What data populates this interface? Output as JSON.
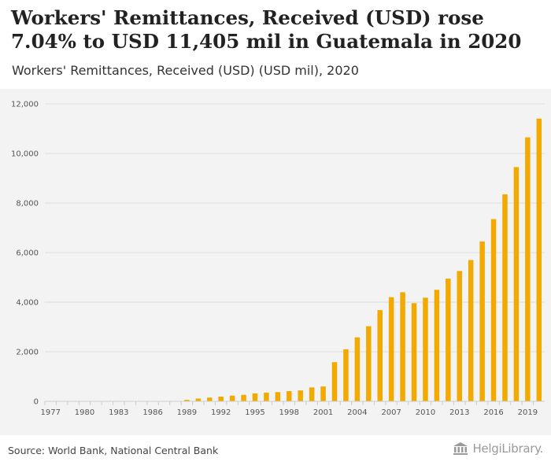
{
  "header": {
    "title": "Workers' Remittances, Received (USD) rose 7.04% to USD 11,405 mil in Guatemala in 2020",
    "subtitle": "Workers' Remittances, Received (USD) (USD mil), 2020"
  },
  "footer": {
    "source": "Source: World Bank, National Central Bank",
    "logo_text": "HelgiLibrary."
  },
  "colors": {
    "bar": "#f2a900",
    "grid": "#dddddd",
    "background": "#f3f3f3",
    "axis_text": "#555555"
  },
  "chart_data": {
    "type": "bar",
    "title": "",
    "xlabel": "",
    "ylabel": "",
    "ylim": [
      0,
      12000
    ],
    "yticks": [
      0,
      2000,
      4000,
      6000,
      8000,
      10000,
      12000
    ],
    "ytick_labels": [
      "0",
      "2,000",
      "4,000",
      "6,000",
      "8,000",
      "10,000",
      "12,000"
    ],
    "grid": true,
    "categories": [
      "1977",
      "1978",
      "1979",
      "1980",
      "1981",
      "1982",
      "1983",
      "1984",
      "1985",
      "1986",
      "1987",
      "1988",
      "1989",
      "1990",
      "1991",
      "1992",
      "1993",
      "1994",
      "1995",
      "1996",
      "1997",
      "1998",
      "1999",
      "2000",
      "2001",
      "2002",
      "2003",
      "2004",
      "2005",
      "2006",
      "2007",
      "2008",
      "2009",
      "2010",
      "2011",
      "2012",
      "2013",
      "2014",
      "2015",
      "2016",
      "2017",
      "2018",
      "2019",
      "2020"
    ],
    "xtick_labels": [
      "1977",
      "1980",
      "1983",
      "1986",
      "1989",
      "1992",
      "1995",
      "1998",
      "2001",
      "2004",
      "2007",
      "2010",
      "2013",
      "2016",
      "2019"
    ],
    "values": [
      null,
      null,
      null,
      null,
      null,
      null,
      null,
      null,
      null,
      null,
      null,
      null,
      60,
      110,
      150,
      190,
      230,
      260,
      320,
      350,
      370,
      410,
      440,
      560,
      600,
      1580,
      2100,
      2580,
      3030,
      3680,
      4200,
      4400,
      3960,
      4180,
      4500,
      4950,
      5260,
      5700,
      6450,
      7350,
      8350,
      9450,
      10650,
      11405
    ]
  }
}
